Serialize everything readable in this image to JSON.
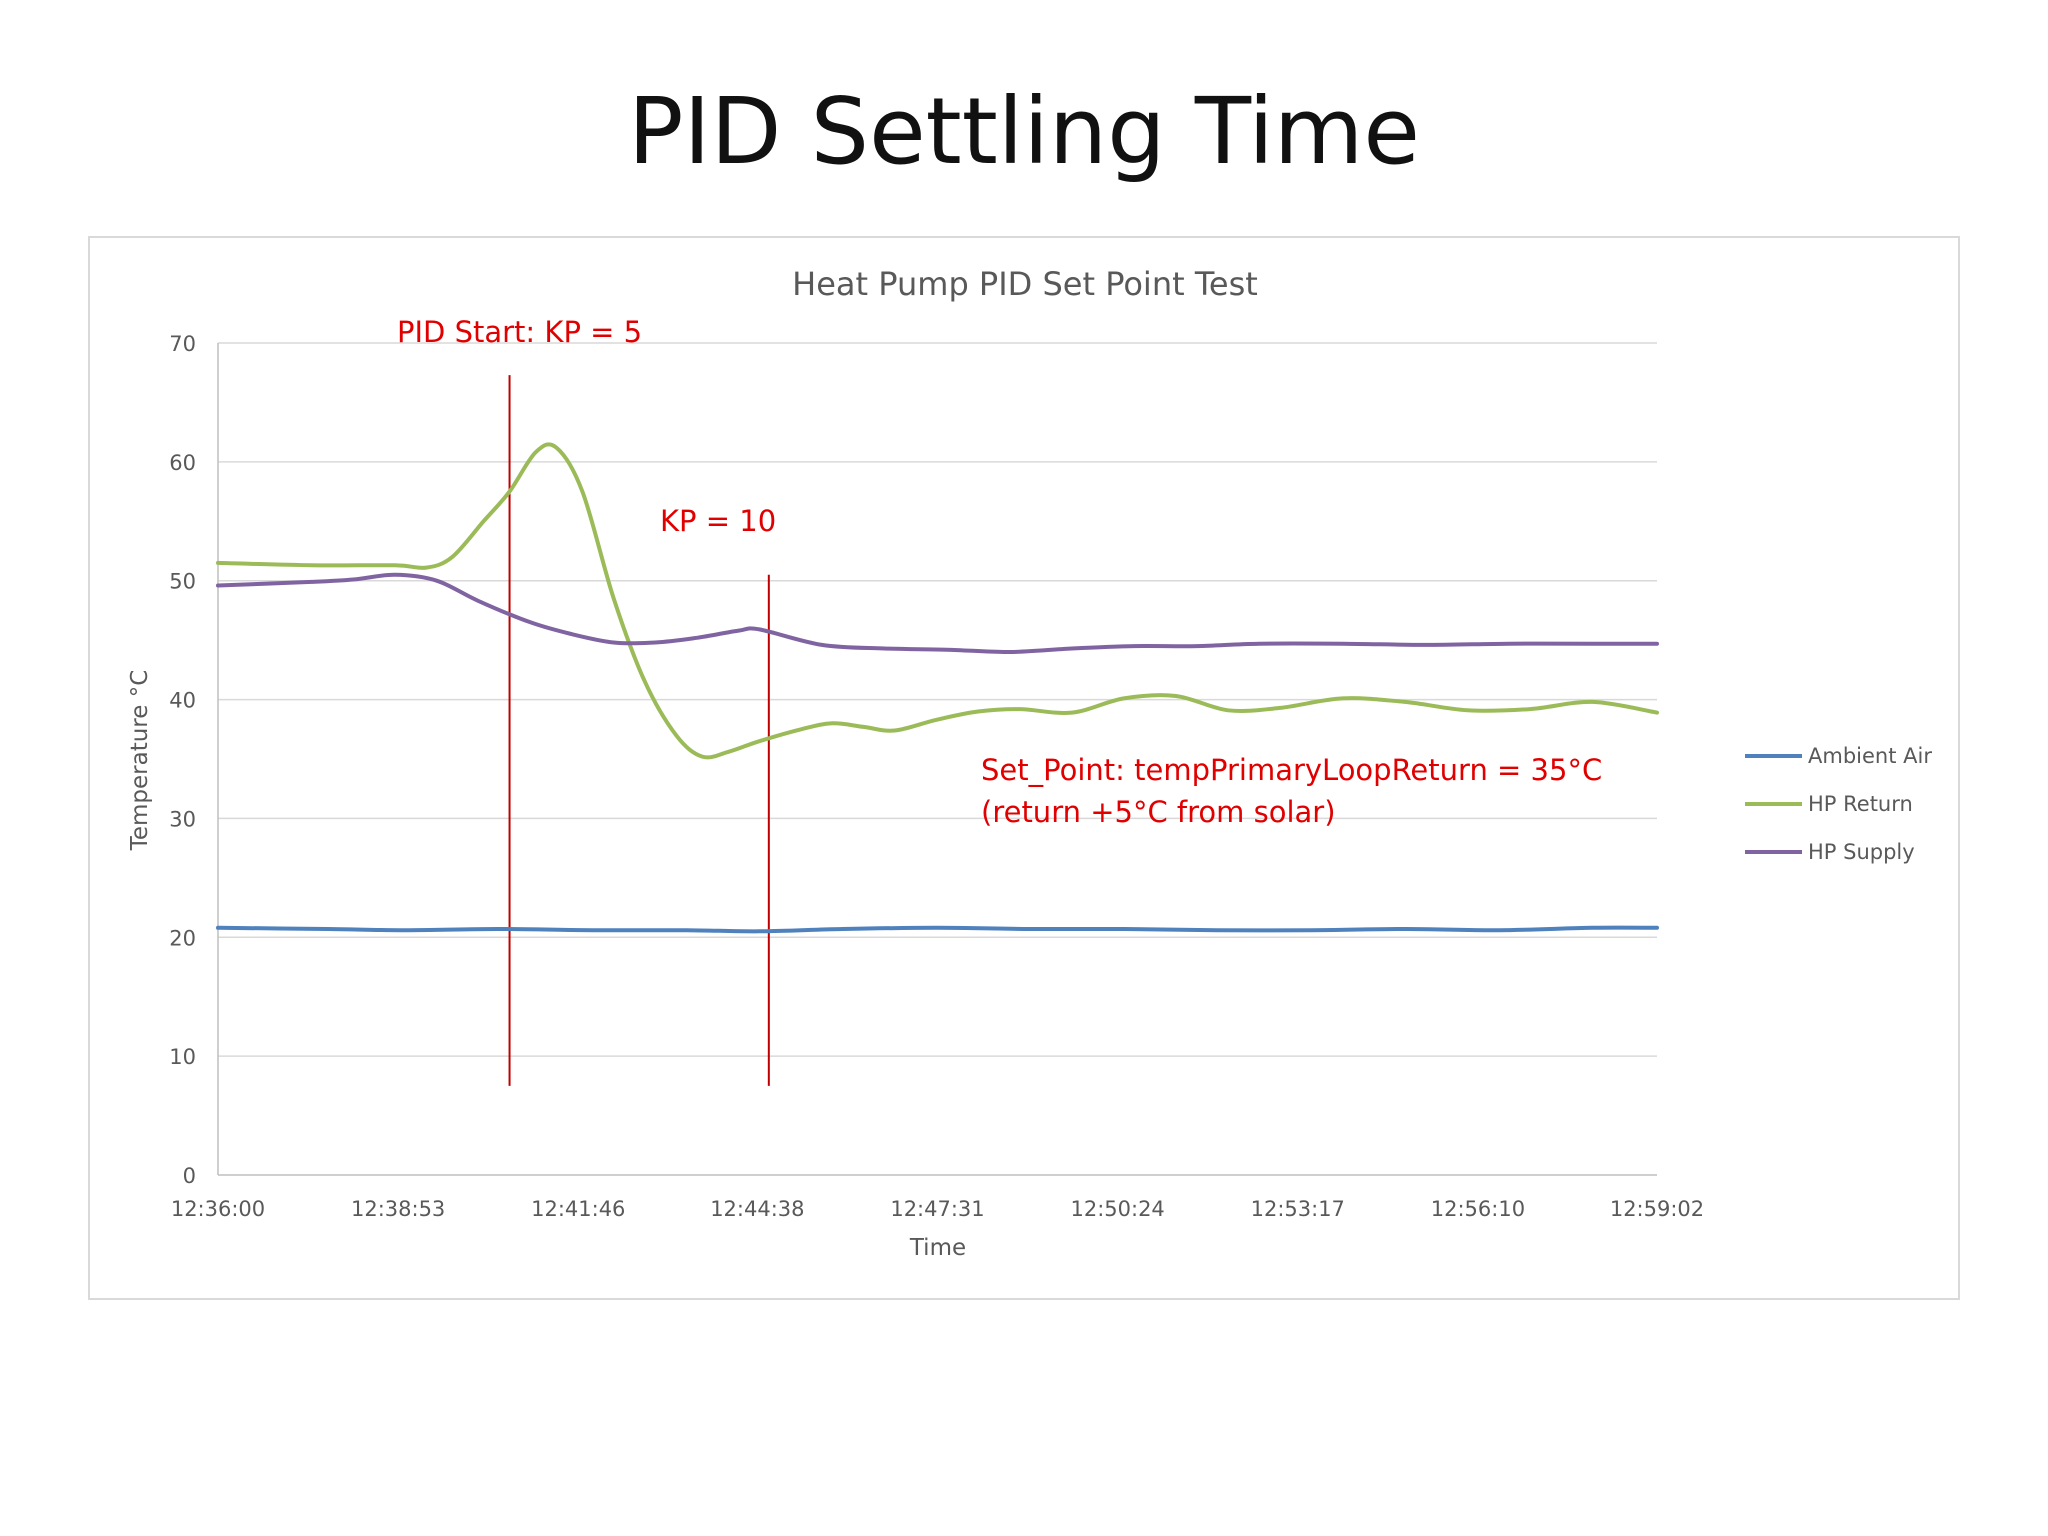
{
  "slide": {
    "title": "PID Settling Time"
  },
  "chart_data": {
    "type": "line",
    "title": "Heat Pump PID Set Point Test",
    "xlabel": "Time",
    "ylabel": "Temperature °C",
    "ylim": [
      0,
      70
    ],
    "yticks": [
      0,
      10,
      20,
      30,
      40,
      50,
      60,
      70
    ],
    "xlim": [
      "12:36:00",
      "12:59:02"
    ],
    "xticks": [
      "12:36:00",
      "12:38:53",
      "12:41:46",
      "12:44:38",
      "12:47:31",
      "12:50:24",
      "12:53:17",
      "12:56:10",
      "12:59:02"
    ],
    "grid": "horizontal",
    "legend_position": "right",
    "series": [
      {
        "name": "Ambient Air",
        "color": "#4f81bd",
        "points": [
          [
            "12:36:00",
            20.8
          ],
          [
            "12:37:45",
            20.7
          ],
          [
            "12:39:00",
            20.6
          ],
          [
            "12:40:30",
            20.7
          ],
          [
            "12:42:00",
            20.6
          ],
          [
            "12:43:30",
            20.6
          ],
          [
            "12:44:40",
            20.5
          ],
          [
            "12:46:00",
            20.7
          ],
          [
            "12:47:30",
            20.8
          ],
          [
            "12:49:00",
            20.7
          ],
          [
            "12:50:30",
            20.7
          ],
          [
            "12:52:00",
            20.6
          ],
          [
            "12:53:30",
            20.6
          ],
          [
            "12:55:00",
            20.7
          ],
          [
            "12:56:30",
            20.6
          ],
          [
            "12:58:00",
            20.8
          ],
          [
            "12:59:02",
            20.8
          ]
        ]
      },
      {
        "name": "HP Return",
        "color": "#9bbb59",
        "points": [
          [
            "12:36:00",
            51.5
          ],
          [
            "12:37:30",
            51.3
          ],
          [
            "12:38:50",
            51.3
          ],
          [
            "12:39:20",
            51.1
          ],
          [
            "12:39:45",
            52.0
          ],
          [
            "12:40:15",
            55.0
          ],
          [
            "12:40:40",
            57.5
          ],
          [
            "12:41:05",
            60.8
          ],
          [
            "12:41:25",
            61.2
          ],
          [
            "12:41:50",
            57.5
          ],
          [
            "12:42:20",
            48.5
          ],
          [
            "12:42:50",
            41.5
          ],
          [
            "12:43:20",
            37.0
          ],
          [
            "12:43:45",
            35.2
          ],
          [
            "12:44:10",
            35.6
          ],
          [
            "12:44:40",
            36.5
          ],
          [
            "12:45:20",
            37.5
          ],
          [
            "12:45:50",
            38.0
          ],
          [
            "12:46:20",
            37.7
          ],
          [
            "12:46:50",
            37.4
          ],
          [
            "12:47:30",
            38.3
          ],
          [
            "12:48:10",
            39.0
          ],
          [
            "12:48:50",
            39.2
          ],
          [
            "12:49:40",
            38.9
          ],
          [
            "12:50:30",
            40.1
          ],
          [
            "12:51:20",
            40.3
          ],
          [
            "12:52:10",
            39.1
          ],
          [
            "12:53:00",
            39.3
          ],
          [
            "12:54:00",
            40.1
          ],
          [
            "12:55:00",
            39.8
          ],
          [
            "12:56:00",
            39.1
          ],
          [
            "12:57:00",
            39.2
          ],
          [
            "12:58:00",
            39.8
          ],
          [
            "12:59:02",
            38.9
          ]
        ]
      },
      {
        "name": "HP Supply",
        "color": "#8064a2",
        "points": [
          [
            "12:36:00",
            49.6
          ],
          [
            "12:37:30",
            49.9
          ],
          [
            "12:38:10",
            50.1
          ],
          [
            "12:38:50",
            50.5
          ],
          [
            "12:39:30",
            50.0
          ],
          [
            "12:40:10",
            48.3
          ],
          [
            "12:41:00",
            46.5
          ],
          [
            "12:41:40",
            45.5
          ],
          [
            "12:42:20",
            44.8
          ],
          [
            "12:43:00",
            44.8
          ],
          [
            "12:43:40",
            45.2
          ],
          [
            "12:44:20",
            45.8
          ],
          [
            "12:44:40",
            45.9
          ],
          [
            "12:45:40",
            44.6
          ],
          [
            "12:46:40",
            44.3
          ],
          [
            "12:47:40",
            44.2
          ],
          [
            "12:48:40",
            44.0
          ],
          [
            "12:49:40",
            44.3
          ],
          [
            "12:50:40",
            44.5
          ],
          [
            "12:51:40",
            44.5
          ],
          [
            "12:52:40",
            44.7
          ],
          [
            "12:54:00",
            44.7
          ],
          [
            "12:55:20",
            44.6
          ],
          [
            "12:56:40",
            44.7
          ],
          [
            "12:58:00",
            44.7
          ],
          [
            "12:59:02",
            44.7
          ]
        ]
      }
    ],
    "annotations": [
      {
        "type": "vline",
        "x": "12:40:40",
        "color": "#c00000",
        "y_range": [
          7.5,
          67.3
        ]
      },
      {
        "type": "vline",
        "x": "12:44:49",
        "color": "#c00000",
        "y_range": [
          7.5,
          50.5
        ]
      },
      {
        "type": "text",
        "lines": [
          "PID Start: KP = 5"
        ],
        "color": "#e00000"
      },
      {
        "type": "text",
        "lines": [
          "KP = 10"
        ],
        "color": "#e00000"
      },
      {
        "type": "text",
        "lines": [
          "Set_Point: tempPrimaryLoopReturn = 35°C",
          "(return +5°C  from solar)"
        ],
        "color": "#e00000"
      }
    ]
  }
}
